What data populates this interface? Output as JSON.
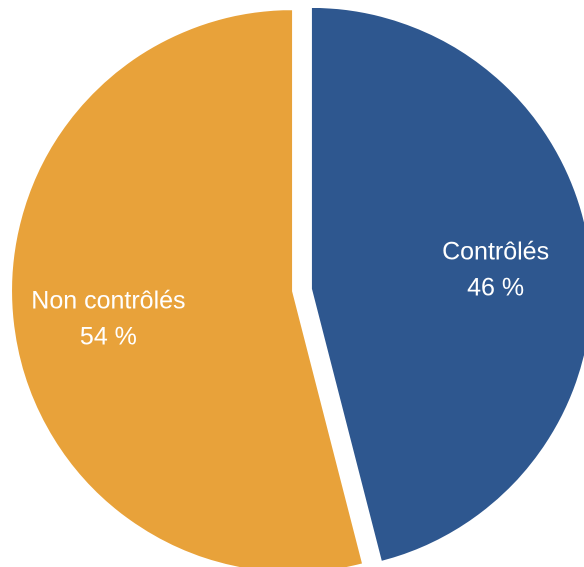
{
  "chart_data": {
    "type": "pie",
    "categories": [
      "Contrôlés",
      "Non contrôlés"
    ],
    "values": [
      46,
      54
    ],
    "value_labels": [
      "46 %",
      "54 %"
    ],
    "colors": [
      "#2E578F",
      "#E8A23A"
    ],
    "legend": "none"
  }
}
